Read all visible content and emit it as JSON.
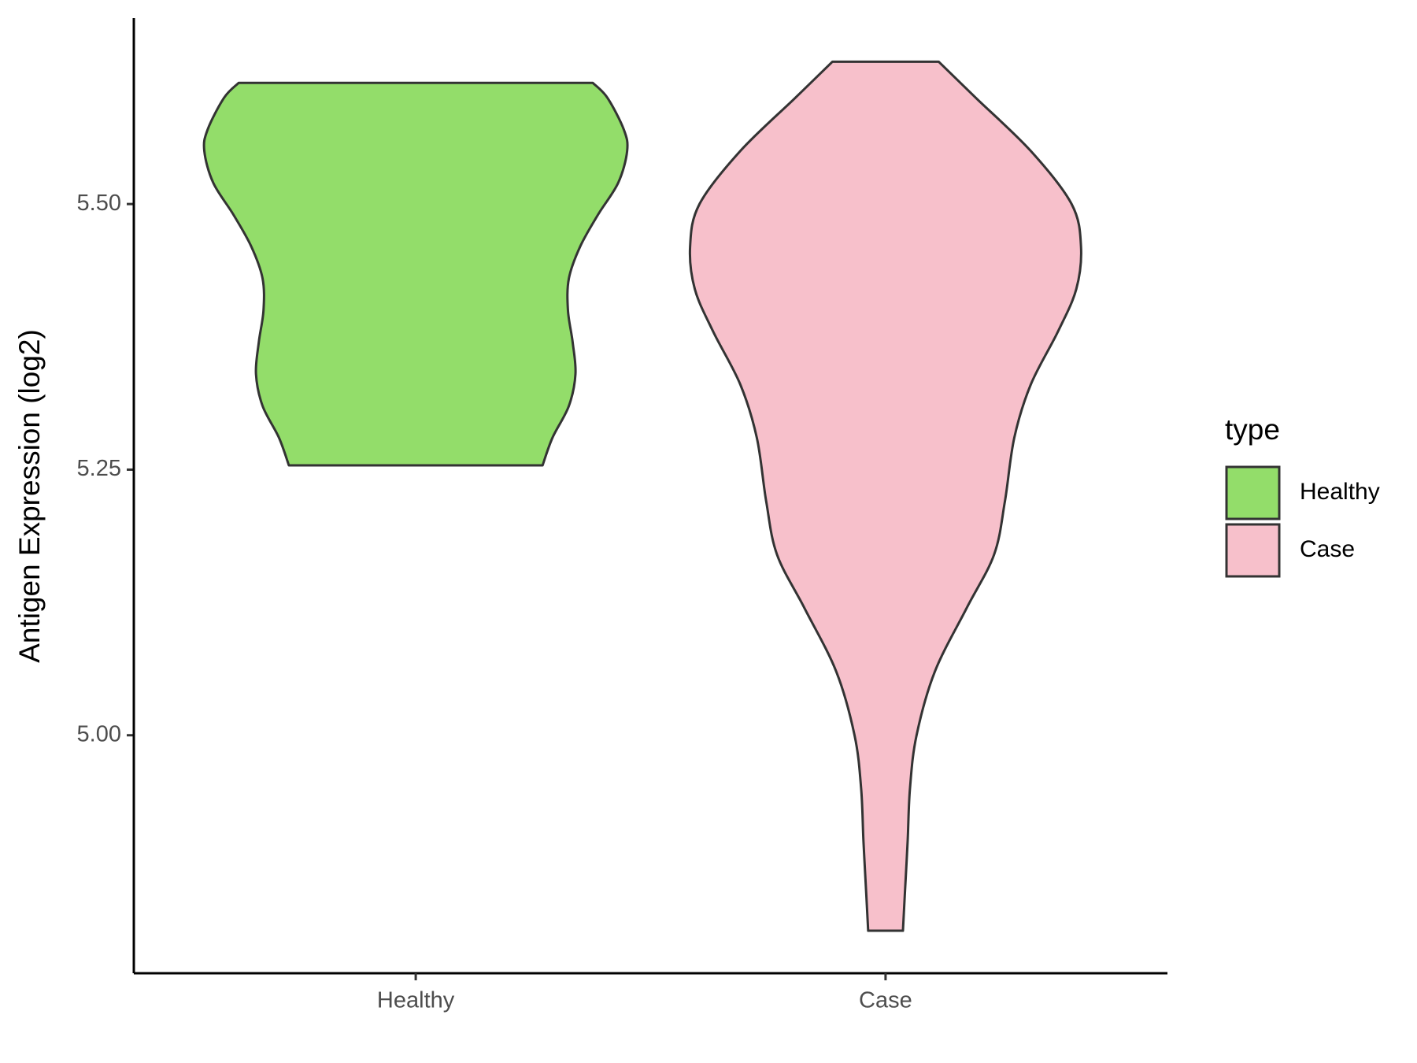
{
  "chart_data": {
    "type": "violin",
    "y_label": "Antigen Expression (log2)",
    "categories": [
      "Healthy",
      "Case"
    ],
    "legend_title": "type",
    "legend_position": "right",
    "xlim": [
      0.4,
      2.6
    ],
    "ylim": [
      4.776,
      5.675
    ],
    "yticks": [
      {
        "value": 5,
        "label": "5.00"
      },
      5.25,
      {
        "value": 5.5,
        "label": "5.50"
      }
    ],
    "series": [
      {
        "name": "Healthy",
        "color": "#93dd6a",
        "y": [
          5.614,
          5.6,
          5.57,
          5.55,
          5.52,
          5.49,
          5.46,
          5.43,
          5.4,
          5.37,
          5.34,
          5.31,
          5.28,
          5.254
        ],
        "half_width": [
          0.377,
          0.408,
          0.443,
          0.45,
          0.431,
          0.388,
          0.35,
          0.326,
          0.324,
          0.334,
          0.34,
          0.326,
          0.291,
          0.27
        ]
      },
      {
        "name": "Case",
        "color": "#f7c0cb",
        "y": [
          5.634,
          5.6,
          5.55,
          5.5,
          5.46,
          5.42,
          5.38,
          5.33,
          5.28,
          5.22,
          5.17,
          5.12,
          5.06,
          5.0,
          4.95,
          4.9,
          4.85,
          4.816
        ],
        "half_width": [
          0.113,
          0.192,
          0.309,
          0.396,
          0.416,
          0.406,
          0.367,
          0.309,
          0.274,
          0.254,
          0.231,
          0.173,
          0.105,
          0.066,
          0.052,
          0.047,
          0.041,
          0.037
        ]
      }
    ]
  }
}
